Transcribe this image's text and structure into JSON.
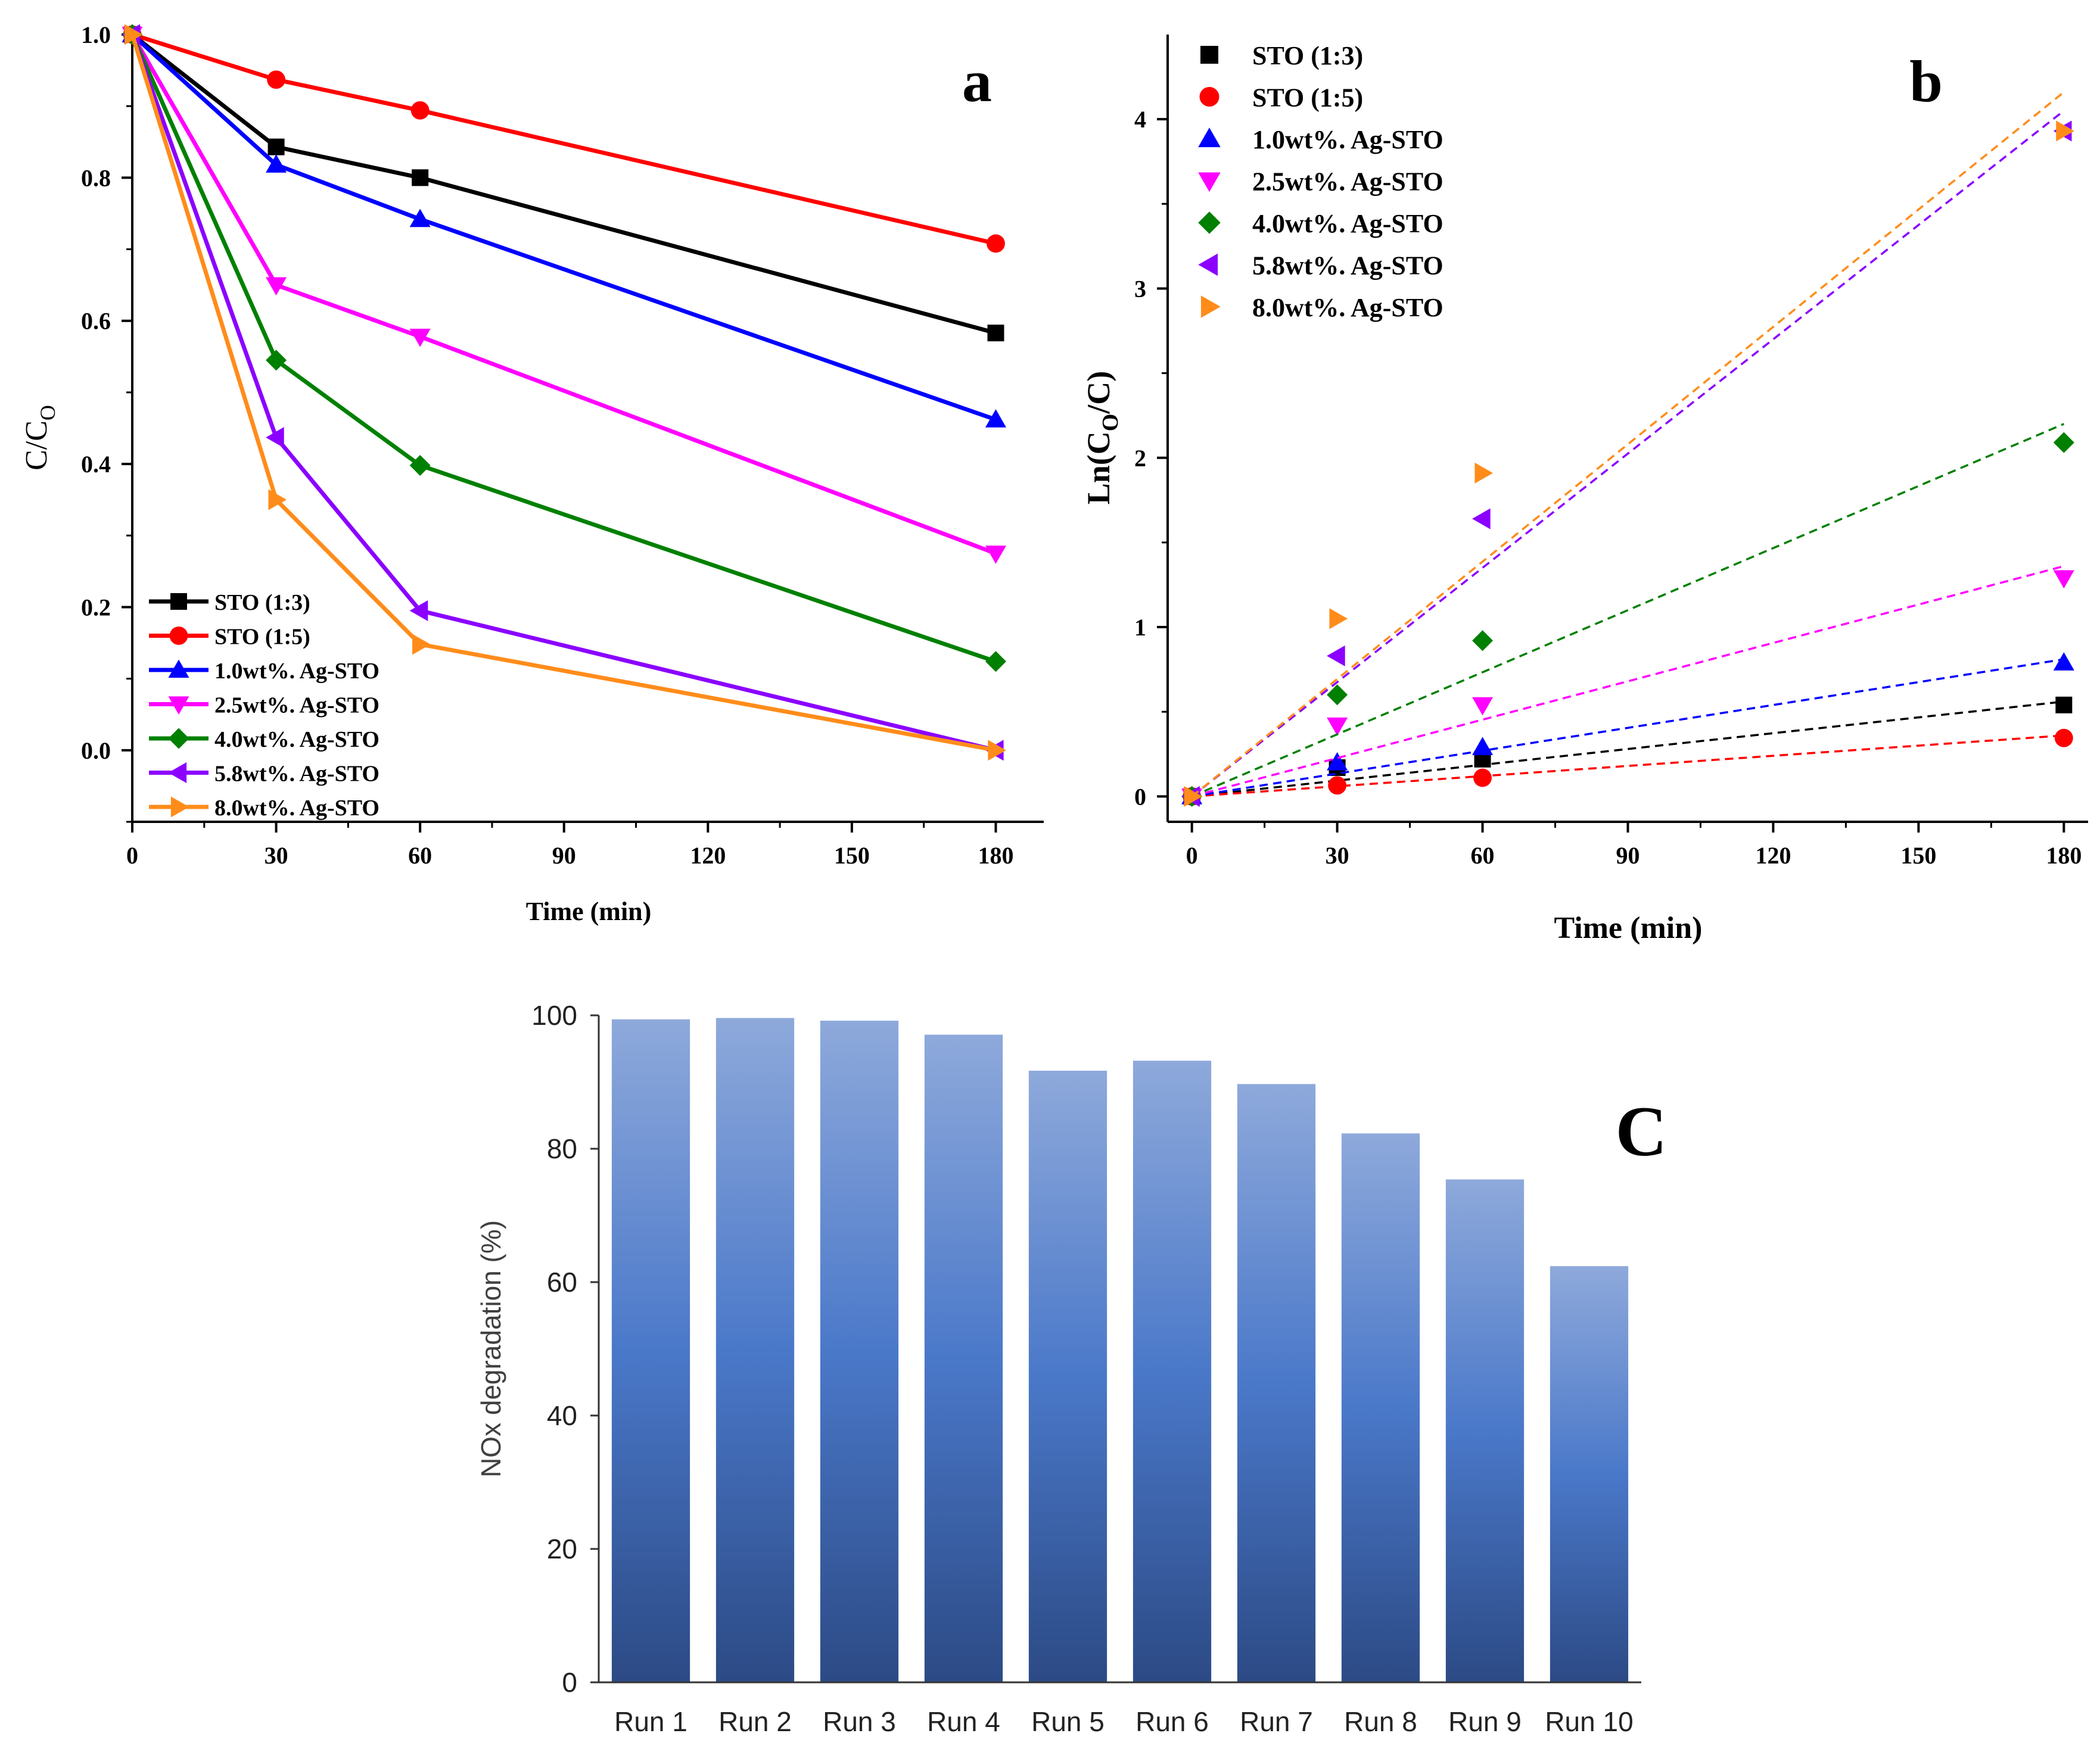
{
  "chart_data": [
    {
      "panel": "a",
      "type": "line",
      "panel_label": "a",
      "title": "",
      "xlabel": "Time (min)",
      "ylabel_main": "C/C",
      "ylabel_sub": "O",
      "xlim": [
        0,
        190
      ],
      "ylim": [
        -0.1,
        1.0
      ],
      "xticks": [
        0,
        30,
        60,
        90,
        120,
        150,
        180
      ],
      "yticks": [
        0.0,
        0.2,
        0.4,
        0.6,
        0.8,
        1.0
      ],
      "ytick_labels": [
        "0.0",
        "0.2",
        "0.4",
        "0.6",
        "0.8",
        "1.0"
      ],
      "legend_position": "bottom-left",
      "x": [
        0,
        30,
        60,
        180
      ],
      "series": [
        {
          "name": "STO (1:3)",
          "color": "#000000",
          "marker": "square",
          "values": [
            1.0,
            0.843,
            0.8,
            0.583
          ]
        },
        {
          "name": "STO (1:5)",
          "color": "#ff0000",
          "marker": "circle",
          "values": [
            1.0,
            0.937,
            0.894,
            0.708
          ]
        },
        {
          "name": "1.0wt%. Ag-STO",
          "color": "#0000ff",
          "marker": "triangle-up",
          "values": [
            1.0,
            0.818,
            0.742,
            0.462
          ]
        },
        {
          "name": "2.5wt%. Ag-STO",
          "color": "#ff00ff",
          "marker": "triangle-down",
          "values": [
            1.0,
            0.65,
            0.578,
            0.275
          ]
        },
        {
          "name": "4.0wt%. Ag-STO",
          "color": "#008000",
          "marker": "diamond",
          "values": [
            1.0,
            0.545,
            0.398,
            0.124
          ]
        },
        {
          "name": "5.8wt%. Ag-STO",
          "color": "#8b00ff",
          "marker": "triangle-left",
          "values": [
            1.0,
            0.437,
            0.195,
            0.0
          ]
        },
        {
          "name": "8.0wt%. Ag-STO",
          "color": "#ff8c1a",
          "marker": "triangle-right",
          "values": [
            1.0,
            0.35,
            0.148,
            0.0
          ]
        }
      ]
    },
    {
      "panel": "b",
      "type": "scatter",
      "panel_label": "b",
      "title": "",
      "xlabel": "Time (min)",
      "ylabel_main_1": "Ln(C",
      "ylabel_sub_1": "O",
      "ylabel_main_2": "/C)",
      "xlim": [
        -5,
        185
      ],
      "ylim": [
        -0.15,
        4.5
      ],
      "xticks": [
        0,
        30,
        60,
        90,
        120,
        150,
        180
      ],
      "yticks": [
        0,
        1,
        2,
        3,
        4
      ],
      "ytick_labels": [
        "0",
        "1",
        "2",
        "3",
        "4"
      ],
      "legend_position": "top-left",
      "fit_lines": "dashed linear fits",
      "x": [
        0,
        30,
        60,
        180
      ],
      "series": [
        {
          "name": "STO (1:3)",
          "color": "#000000",
          "marker": "square",
          "values": [
            0.0,
            0.17,
            0.22,
            0.54
          ],
          "fit_end": 0.56
        },
        {
          "name": "STO (1:5)",
          "color": "#ff0000",
          "marker": "circle",
          "values": [
            0.0,
            0.065,
            0.11,
            0.345
          ],
          "fit_end": 0.36
        },
        {
          "name": "1.0wt%. Ag-STO",
          "color": "#0000ff",
          "marker": "triangle-up",
          "values": [
            0.0,
            0.2,
            0.29,
            0.79
          ],
          "fit_end": 0.81
        },
        {
          "name": "2.5wt%. Ag-STO",
          "color": "#ff00ff",
          "marker": "triangle-down",
          "values": [
            0.0,
            0.42,
            0.54,
            1.29
          ],
          "fit_end": 1.36
        },
        {
          "name": "4.0wt%. Ag-STO",
          "color": "#008000",
          "marker": "diamond",
          "values": [
            0.0,
            0.6,
            0.92,
            2.09
          ],
          "fit_end": 2.2
        },
        {
          "name": "5.8wt%. Ag-STO",
          "color": "#8b00ff",
          "marker": "triangle-left",
          "values": [
            0.0,
            0.83,
            1.64,
            3.93
          ],
          "fit_end": 4.05
        },
        {
          "name": "8.0wt%. Ag-STO",
          "color": "#ff8c1a",
          "marker": "triangle-right",
          "values": [
            0.0,
            1.05,
            1.91,
            3.93
          ],
          "fit_end": 4.16
        }
      ]
    },
    {
      "panel": "c",
      "type": "bar",
      "panel_label": "C",
      "title": "",
      "xlabel": "",
      "ylabel": "NOx degradation (%)",
      "ylim": [
        0,
        100
      ],
      "yticks": [
        0,
        20,
        40,
        60,
        80,
        100
      ],
      "ytick_labels": [
        "0",
        "20",
        "40",
        "60",
        "80",
        "100"
      ],
      "categories": [
        "Run 1",
        "Run 2",
        "Run 3",
        "Run 4",
        "Run 5",
        "Run 6",
        "Run 7",
        "Run 8",
        "Run 9",
        "Run 10"
      ],
      "values": [
        99.4,
        99.6,
        99.2,
        97.1,
        91.7,
        93.2,
        89.7,
        82.3,
        75.4,
        62.4
      ],
      "bar_color_top": "#8ea9db",
      "bar_color_mid": "#4a78c9",
      "bar_color_bottom": "#2c4a85"
    }
  ]
}
